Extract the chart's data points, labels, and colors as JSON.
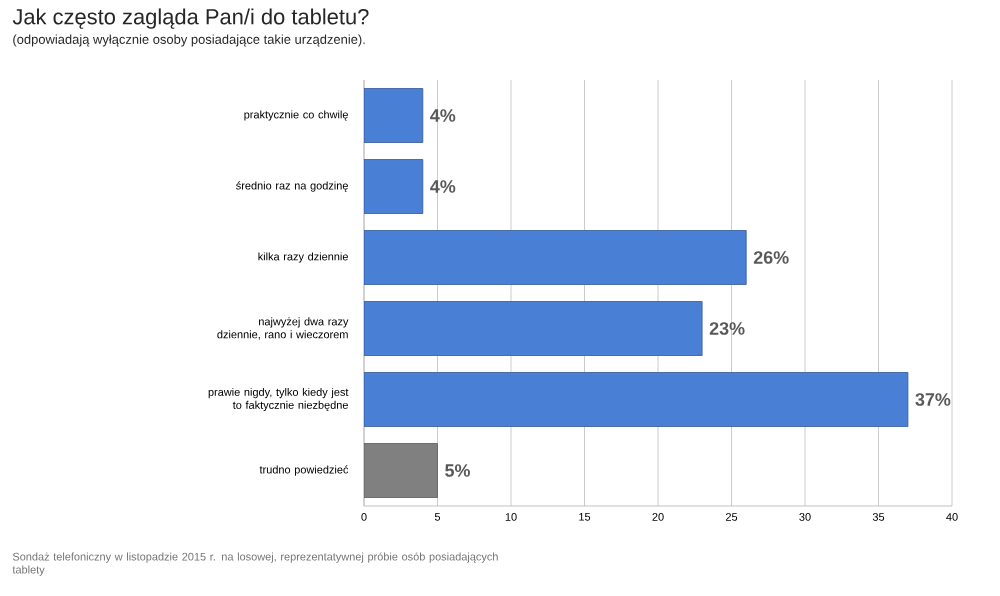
{
  "chart_data": {
    "type": "bar",
    "orientation": "horizontal",
    "title": "Jak często zagląda Pan/i do tabletu?",
    "subtitle": "(odpowiadają wyłącznie osoby posiadające takie urządzenie).",
    "categories": [
      "praktycznie co chwilę",
      "średnio raz na godzinę",
      "kilka razy dziennie",
      "najwyżej dwa razy dziennie, rano i wieczorem",
      "prawie nigdy, tylko kiedy jest to faktycznie niezbędne",
      "trudno powiedzieć"
    ],
    "values": [
      4,
      4,
      26,
      23,
      37,
      5
    ],
    "value_labels": [
      "4%",
      "4%",
      "26%",
      "23%",
      "37%",
      "5%"
    ],
    "colors": [
      "#4a7fd6",
      "#4a7fd6",
      "#4a7fd6",
      "#4a7fd6",
      "#4a7fd6",
      "#808080"
    ],
    "xlim": [
      0,
      40
    ],
    "xticks": [
      0,
      5,
      10,
      15,
      20,
      25,
      30,
      35,
      40
    ],
    "grid": "x",
    "annotations": [
      "Sondaż telefoniczny w listopadzie 2015 r. na losowej, reprezentatywnej próbie osób posiadających tablety"
    ]
  }
}
